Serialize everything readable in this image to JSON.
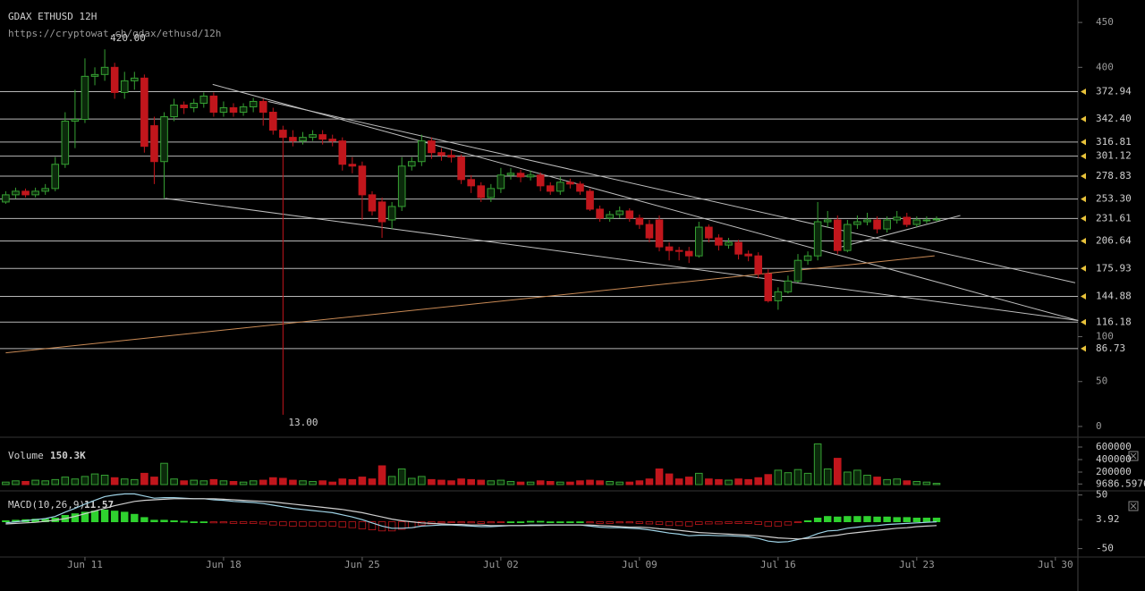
{
  "header": {
    "title": "GDAX ETHUSD 12H",
    "url": "https://cryptowat.ch/gdax/ethusd/12h"
  },
  "chart_data": [
    {
      "type": "candlestick",
      "categories": [
        null,
        null,
        null,
        null,
        null,
        null,
        null,
        null,
        "Jun 11",
        null,
        null,
        null,
        null,
        null,
        null,
        null,
        null,
        null,
        null,
        null,
        null,
        null,
        "Jun 18",
        null,
        null,
        null,
        null,
        null,
        null,
        null,
        null,
        null,
        null,
        null,
        null,
        null,
        "Jun 25",
        null,
        null,
        null,
        null,
        null,
        null,
        null,
        null,
        null,
        null,
        null,
        null,
        null,
        "Jul 02",
        null,
        null,
        null,
        null,
        null,
        null,
        null,
        null,
        null,
        null,
        null,
        null,
        null,
        "Jul 09",
        null,
        null,
        null,
        null,
        null,
        null,
        null,
        null,
        null,
        null,
        null,
        null,
        null,
        "Jul 16",
        null,
        null,
        null,
        null,
        null,
        null,
        null,
        null,
        null,
        null,
        null,
        null,
        null,
        "Jul 23",
        null,
        null,
        null,
        null,
        null,
        null,
        null,
        null,
        null,
        null,
        null,
        null,
        null,
        "Jul 30",
        null
      ],
      "open": [
        250,
        258,
        262,
        258,
        262,
        265,
        292,
        340,
        342,
        390,
        392,
        400,
        372,
        385,
        388,
        335,
        295,
        345,
        358,
        355,
        360,
        368,
        350,
        355,
        350,
        356,
        362,
        350,
        330,
        322,
        318,
        322,
        325,
        320,
        318,
        292,
        290,
        258,
        250,
        230,
        245,
        290,
        295,
        318,
        305,
        302,
        300,
        275,
        268,
        255,
        265,
        280,
        282,
        278,
        280,
        268,
        262,
        272,
        270,
        262,
        242,
        232,
        236,
        240,
        232,
        225,
        230,
        200,
        196,
        195,
        190,
        222,
        210,
        202,
        205,
        192,
        190,
        170,
        140,
        150,
        162,
        185,
        190,
        228,
        230,
        196,
        225,
        228,
        230,
        220,
        230,
        233,
        225,
        230,
        230,
        null,
        null,
        null,
        null,
        null,
        null,
        null,
        null,
        null,
        null,
        null,
        null,
        null
      ],
      "high": [
        262,
        266,
        265,
        266,
        270,
        300,
        350,
        375,
        410,
        400,
        420,
        405,
        395,
        395,
        392,
        345,
        350,
        365,
        362,
        365,
        372,
        372,
        362,
        360,
        360,
        366,
        365,
        355,
        335,
        330,
        328,
        330,
        330,
        325,
        322,
        300,
        295,
        262,
        255,
        250,
        300,
        300,
        325,
        322,
        310,
        308,
        303,
        280,
        272,
        270,
        288,
        288,
        286,
        285,
        283,
        272,
        278,
        276,
        273,
        265,
        246,
        240,
        245,
        243,
        236,
        230,
        235,
        205,
        200,
        200,
        228,
        225,
        214,
        210,
        208,
        196,
        194,
        175,
        155,
        168,
        192,
        195,
        250,
        240,
        235,
        230,
        235,
        238,
        234,
        234,
        240,
        238,
        234,
        234,
        234,
        null,
        null,
        null,
        null,
        null,
        null,
        null,
        null,
        null,
        null,
        null,
        null,
        null
      ],
      "low": [
        248,
        254,
        255,
        255,
        258,
        262,
        288,
        310,
        338,
        380,
        385,
        365,
        365,
        375,
        305,
        270,
        254,
        340,
        348,
        350,
        355,
        345,
        345,
        345,
        346,
        350,
        335,
        325,
        13,
        312,
        314,
        318,
        314,
        312,
        285,
        282,
        230,
        235,
        210,
        220,
        240,
        285,
        290,
        298,
        296,
        294,
        270,
        260,
        250,
        250,
        260,
        275,
        272,
        274,
        262,
        258,
        258,
        265,
        258,
        240,
        228,
        228,
        232,
        228,
        220,
        205,
        195,
        185,
        185,
        182,
        188,
        205,
        196,
        198,
        186,
        184,
        165,
        138,
        130,
        148,
        160,
        180,
        185,
        222,
        192,
        194,
        220,
        224,
        215,
        216,
        226,
        222,
        222,
        226,
        228,
        null,
        null,
        null,
        null,
        null,
        null,
        null,
        null,
        null,
        null,
        null,
        null,
        null
      ],
      "close": [
        258,
        262,
        258,
        262,
        265,
        292,
        340,
        342,
        390,
        392,
        400,
        372,
        385,
        388,
        312,
        295,
        345,
        358,
        355,
        360,
        368,
        350,
        355,
        350,
        356,
        362,
        350,
        330,
        322,
        318,
        322,
        325,
        320,
        318,
        292,
        290,
        258,
        240,
        228,
        245,
        290,
        295,
        318,
        305,
        302,
        300,
        275,
        268,
        255,
        265,
        280,
        282,
        278,
        280,
        268,
        262,
        272,
        270,
        262,
        242,
        232,
        236,
        240,
        232,
        225,
        210,
        200,
        196,
        195,
        190,
        222,
        210,
        202,
        205,
        192,
        190,
        170,
        140,
        150,
        162,
        185,
        190,
        228,
        230,
        196,
        225,
        228,
        230,
        220,
        230,
        233,
        225,
        230,
        230,
        231,
        null,
        null,
        null,
        null,
        null,
        null,
        null,
        null,
        null,
        null,
        null,
        null,
        null
      ],
      "colors": {
        "up": "#36a033",
        "down": "#c1161c"
      },
      "ylim": [
        -11,
        475
      ],
      "yticks": [
        0,
        50,
        100,
        400,
        450
      ],
      "levels": [
        {
          "value": 372.94,
          "label": "372.94"
        },
        {
          "value": 342.4,
          "label": "342.40"
        },
        {
          "value": 316.81,
          "label": "316.81"
        },
        {
          "value": 301.12,
          "label": "301.12"
        },
        {
          "value": 278.83,
          "label": "278.83"
        },
        {
          "value": 253.3,
          "label": "253.30"
        },
        {
          "value": 231.61,
          "label": "231.61"
        },
        {
          "value": 206.64,
          "label": "206.64"
        },
        {
          "value": 175.93,
          "label": "175.93"
        },
        {
          "value": 144.88,
          "label": "144.88"
        },
        {
          "value": 116.18,
          "label": "116.18"
        },
        {
          "value": 86.73,
          "label": "86.73"
        }
      ],
      "level_color": "#d8d8d8",
      "annotations": [
        {
          "value": 420,
          "label": "420.00"
        },
        {
          "value": 13,
          "label": "13.00"
        }
      ],
      "trendlines": [
        {
          "from": [
            20.9,
            381
          ],
          "to": [
            108.3,
            118
          ],
          "color": "#bdbdbd"
        },
        {
          "from": [
            16.1,
            254
          ],
          "to": [
            108.3,
            118
          ],
          "color": "#bdbdbd"
        },
        {
          "from": [
            26.5,
            362
          ],
          "to": [
            108,
            160
          ],
          "color": "#bdbdbd"
        },
        {
          "from": [
            84.4,
            200
          ],
          "to": [
            96.4,
            235
          ],
          "color": "#bdbdbd"
        },
        {
          "from": [
            0,
            82
          ],
          "to": [
            93.8,
            190
          ],
          "color": "#c98a55"
        }
      ]
    },
    {
      "type": "bar",
      "label": "Volume",
      "value_label": "150.3K",
      "values": [
        40000,
        60000,
        50000,
        70000,
        60000,
        80000,
        120000,
        90000,
        130000,
        170000,
        150000,
        110000,
        90000,
        80000,
        180000,
        120000,
        340000,
        90000,
        60000,
        70000,
        60000,
        80000,
        60000,
        50000,
        40000,
        60000,
        70000,
        110000,
        100000,
        70000,
        60000,
        50000,
        60000,
        40000,
        90000,
        80000,
        120000,
        90000,
        300000,
        130000,
        250000,
        100000,
        130000,
        80000,
        70000,
        60000,
        90000,
        80000,
        70000,
        60000,
        70000,
        50000,
        40000,
        40000,
        60000,
        50000,
        40000,
        40000,
        60000,
        70000,
        60000,
        50000,
        40000,
        40000,
        60000,
        90000,
        250000,
        170000,
        90000,
        120000,
        180000,
        90000,
        80000,
        70000,
        90000,
        80000,
        110000,
        160000,
        230000,
        190000,
        240000,
        180000,
        650000,
        250000,
        420000,
        200000,
        230000,
        150000,
        120000,
        80000,
        90000,
        60000,
        50000,
        40000,
        20000,
        null,
        null,
        null,
        null,
        null,
        null,
        null,
        null,
        null,
        null,
        null,
        null,
        null
      ],
      "ylim": [
        -86000,
        743000
      ],
      "yticks": [
        9686.5976,
        200000,
        400000,
        600000
      ]
    },
    {
      "type": "macd",
      "label": "MACD(10,26,9)",
      "last": 11.57,
      "series": [
        {
          "name": "MACD",
          "color": "#9fd3e6",
          "values": [
            -2,
            0,
            2,
            4,
            6,
            10,
            18,
            25,
            33,
            40,
            47,
            50,
            52,
            52,
            48,
            44,
            45,
            45,
            44,
            43,
            43,
            41,
            40,
            38,
            37,
            36,
            34,
            31,
            28,
            25,
            23,
            21,
            19,
            17,
            13,
            9,
            4,
            -2,
            -8,
            -12,
            -12,
            -11,
            -8,
            -7,
            -6,
            -6,
            -7,
            -8,
            -9,
            -9,
            -8,
            -7,
            -7,
            -6,
            -6,
            -6,
            -6,
            -6,
            -6,
            -8,
            -10,
            -11,
            -11,
            -12,
            -13,
            -15,
            -18,
            -21,
            -23,
            -26,
            -25,
            -25,
            -26,
            -26,
            -27,
            -28,
            -31,
            -36,
            -38,
            -37,
            -33,
            -29,
            -22,
            -17,
            -16,
            -12,
            -10,
            -8,
            -7,
            -5,
            -4,
            -3,
            -2,
            -1,
            0,
            null,
            null,
            null,
            null,
            null,
            null,
            null,
            null,
            null,
            null,
            null,
            null,
            null
          ]
        },
        {
          "name": "Signal",
          "color": "#d0d0d0",
          "values": [
            -4,
            -3,
            -2,
            -1,
            1,
            3,
            6,
            10,
            15,
            20,
            25,
            30,
            34,
            38,
            40,
            41,
            42,
            43,
            43,
            43,
            43,
            43,
            42,
            41,
            40,
            39,
            38,
            37,
            35,
            33,
            31,
            29,
            27,
            25,
            23,
            20,
            17,
            13,
            9,
            5,
            2,
            0,
            -2,
            -3,
            -4,
            -5,
            -5,
            -6,
            -6,
            -7,
            -7,
            -7,
            -7,
            -7,
            -7,
            -6,
            -6,
            -6,
            -6,
            -6,
            -7,
            -8,
            -9,
            -10,
            -10,
            -11,
            -13,
            -14,
            -16,
            -18,
            -20,
            -21,
            -22,
            -23,
            -24,
            -25,
            -26,
            -28,
            -30,
            -31,
            -32,
            -31,
            -29,
            -27,
            -25,
            -22,
            -20,
            -18,
            -16,
            -14,
            -12,
            -11,
            -9,
            -8,
            -7,
            null,
            null,
            null,
            null,
            null,
            null,
            null,
            null,
            null,
            null,
            null,
            null,
            null
          ]
        },
        {
          "name": "Histogram",
          "values": [
            2,
            3,
            4,
            5,
            5,
            7,
            12,
            15,
            18,
            20,
            22,
            20,
            18,
            14,
            8,
            3,
            3,
            2,
            1,
            0,
            0,
            -2,
            -2,
            -3,
            -3,
            -3,
            -4,
            -6,
            -7,
            -8,
            -8,
            -8,
            -8,
            -8,
            -10,
            -11,
            -13,
            -15,
            -17,
            -17,
            -14,
            -11,
            -6,
            -4,
            -2,
            -1,
            -2,
            -2,
            -3,
            -2,
            -1,
            0,
            0,
            1,
            1,
            0,
            0,
            0,
            0,
            -2,
            -3,
            -3,
            -2,
            -2,
            -3,
            -4,
            -5,
            -7,
            -7,
            -8,
            -5,
            -4,
            -4,
            -3,
            -3,
            -3,
            -5,
            -8,
            -8,
            -6,
            -1,
            2,
            7,
            10,
            9,
            10,
            10,
            10,
            9,
            9,
            8,
            8,
            7,
            7,
            7,
            null,
            null,
            null,
            null,
            null,
            null,
            null,
            null,
            null,
            null,
            null,
            null,
            null
          ]
        }
      ],
      "ylim": [
        -64,
        56
      ],
      "yticks": [
        -50,
        3.92,
        50
      ]
    }
  ]
}
